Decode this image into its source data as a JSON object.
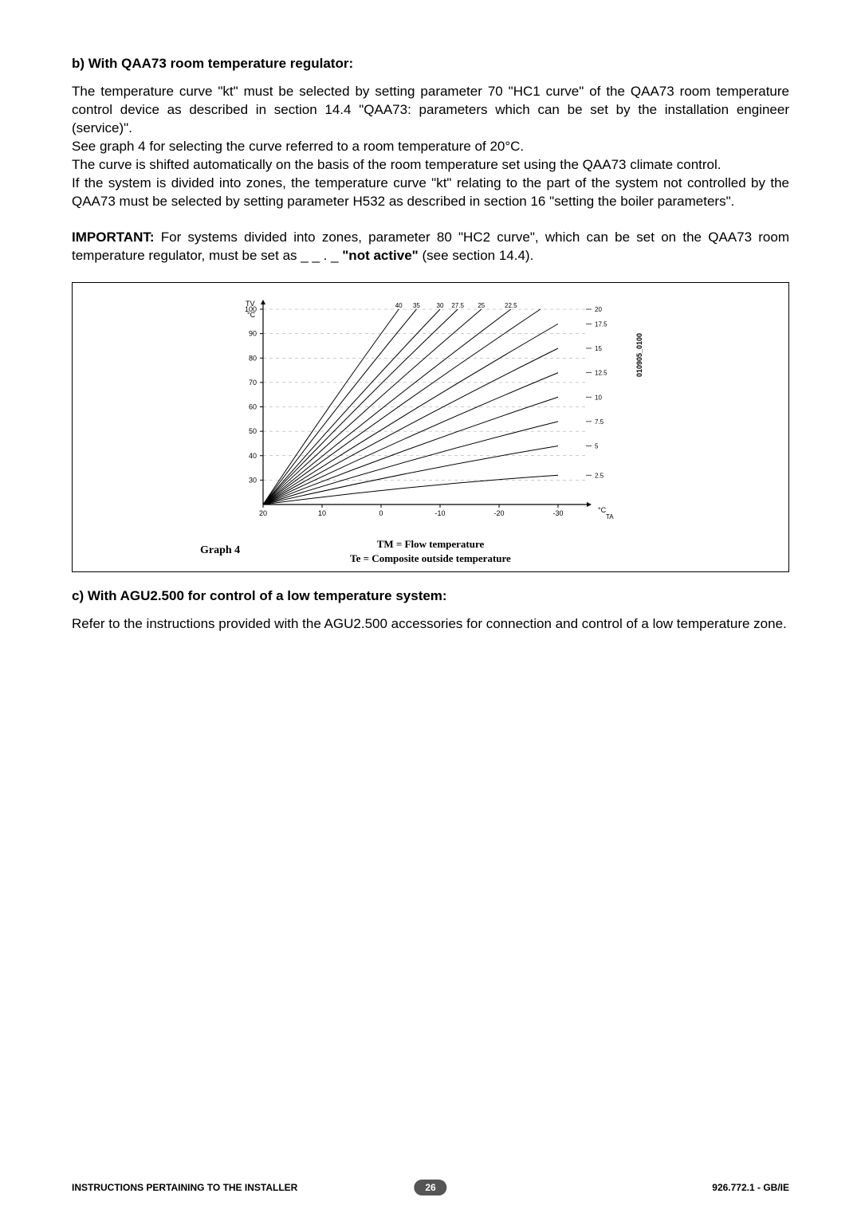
{
  "section_b": {
    "heading": "b) With QAA73 room temperature regulator:",
    "p1": "The temperature curve \"kt\" must be selected by setting parameter 70 \"HC1 curve\" of the QAA73 room temperature control device as described in section 14.4 \"QAA73: parameters which can be set by the installation engineer (service)\".",
    "p2": "See graph 4 for selecting the curve referred to a room temperature of 20°C.",
    "p3": "The curve is shifted automatically on the basis of the room temperature set using the QAA73 climate control.",
    "p4": "If the system is divided into zones, the temperature curve \"kt\" relating to the part of the system not controlled by the QAA73 must be selected by setting parameter H532 as described in section 16 \"setting the boiler parameters\"."
  },
  "important": {
    "label": "IMPORTANT:",
    "text_before": " For systems divided into zones, parameter 80 \"HC2 curve\", which can be set on the QAA73 room temperature regulator, must be set as _ _ . _ ",
    "bold_phrase": "\"not active\"",
    "text_after": " (see section 14.4)."
  },
  "chart": {
    "type": "line",
    "graph_label": "Graph 4",
    "caption_line1": "TM = Flow temperature",
    "caption_line2": "Te = Composite outside temperature",
    "side_label": "010905_0100",
    "y_axis_label": "TV",
    "y_axis_unit": "°C",
    "x_axis_unit_right": "°C",
    "x_axis_sub_right": "TA",
    "x_ticks": [
      20,
      10,
      0,
      -10,
      -20,
      -30
    ],
    "y_ticks": [
      30,
      40,
      50,
      60,
      70,
      80,
      90,
      100
    ],
    "top_labels": [
      40,
      35,
      30,
      27.5,
      25,
      22.5
    ],
    "right_labels": [
      20,
      17.5,
      15,
      12.5,
      10,
      7.5,
      5,
      2.5
    ],
    "xlim": [
      20,
      -30
    ],
    "ylim": [
      20,
      100
    ],
    "grid_color": "#000000",
    "line_color": "#000000",
    "background_color": "#ffffff",
    "line_width": 1,
    "curves": [
      {
        "label": "40",
        "points": [
          [
            20,
            20
          ],
          [
            -3,
            100
          ]
        ]
      },
      {
        "label": "35",
        "points": [
          [
            20,
            20
          ],
          [
            -6,
            100
          ]
        ]
      },
      {
        "label": "30",
        "points": [
          [
            20,
            20
          ],
          [
            -10,
            100
          ]
        ]
      },
      {
        "label": "27.5",
        "points": [
          [
            20,
            20
          ],
          [
            -13,
            100
          ]
        ]
      },
      {
        "label": "25",
        "points": [
          [
            20,
            20
          ],
          [
            -17,
            100
          ]
        ]
      },
      {
        "label": "22.5",
        "points": [
          [
            20,
            20
          ],
          [
            -22,
            100
          ]
        ]
      },
      {
        "label": "20",
        "points": [
          [
            20,
            20
          ],
          [
            -27,
            100
          ]
        ]
      },
      {
        "label": "17.5",
        "points": [
          [
            20,
            20
          ],
          [
            -30,
            94
          ]
        ]
      },
      {
        "label": "15",
        "points": [
          [
            20,
            20
          ],
          [
            -30,
            84
          ]
        ]
      },
      {
        "label": "12.5",
        "points": [
          [
            20,
            20
          ],
          [
            -30,
            74
          ]
        ]
      },
      {
        "label": "10",
        "points": [
          [
            20,
            20
          ],
          [
            -30,
            64
          ]
        ]
      },
      {
        "label": "7.5",
        "points": [
          [
            20,
            20
          ],
          [
            -30,
            54
          ]
        ]
      },
      {
        "label": "5",
        "points": [
          [
            20,
            20
          ],
          [
            -30,
            44
          ]
        ]
      },
      {
        "label": "2.5",
        "points": [
          [
            20,
            20
          ],
          [
            -30,
            32
          ]
        ]
      }
    ]
  },
  "section_c": {
    "heading": "c) With AGU2.500 for control of a  low temperature system:",
    "p1": "Refer to the instructions provided with the AGU2.500 accessories for connection and control of a low temperature zone."
  },
  "footer": {
    "left": "INSTRUCTIONS PERTAINING TO THE INSTALLER",
    "page": "26",
    "right": "926.772.1 - GB/IE"
  }
}
